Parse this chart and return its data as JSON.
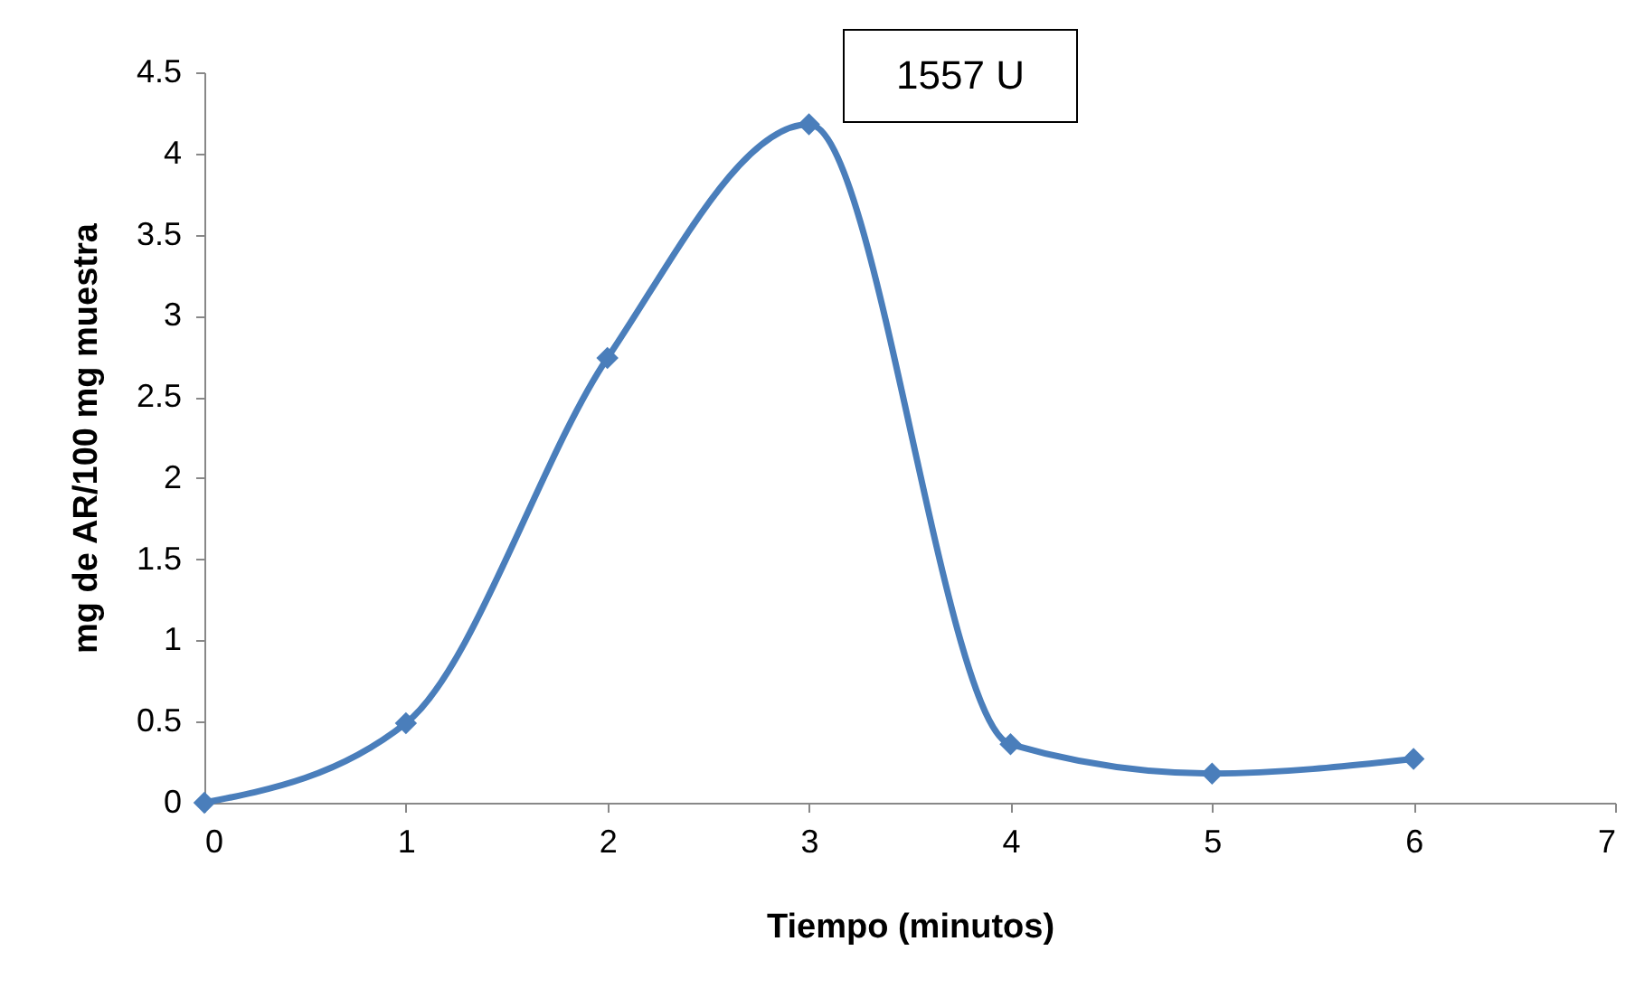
{
  "chart_data": {
    "type": "line",
    "xlabel": "Tiempo (minutos)",
    "ylabel": "mg de AR/100 mg muestra",
    "annotations": [
      "1557 U"
    ],
    "x": [
      0,
      1,
      2,
      3,
      4,
      5,
      6
    ],
    "series": [
      {
        "color": "#4a7ebb",
        "values": [
          0,
          0.49,
          2.74,
          4.18,
          0.36,
          0.18,
          0.27
        ]
      }
    ],
    "xlim": [
      0,
      7
    ],
    "xticks": [
      0,
      1,
      2,
      3,
      4,
      5,
      6,
      7
    ],
    "ylim": [
      0,
      4.5
    ],
    "yticks": [
      0,
      0.5,
      1,
      1.5,
      2,
      2.5,
      3,
      3.5,
      4,
      4.5
    ],
    "grid": false,
    "marker": "diamond",
    "line_style": "solid"
  }
}
